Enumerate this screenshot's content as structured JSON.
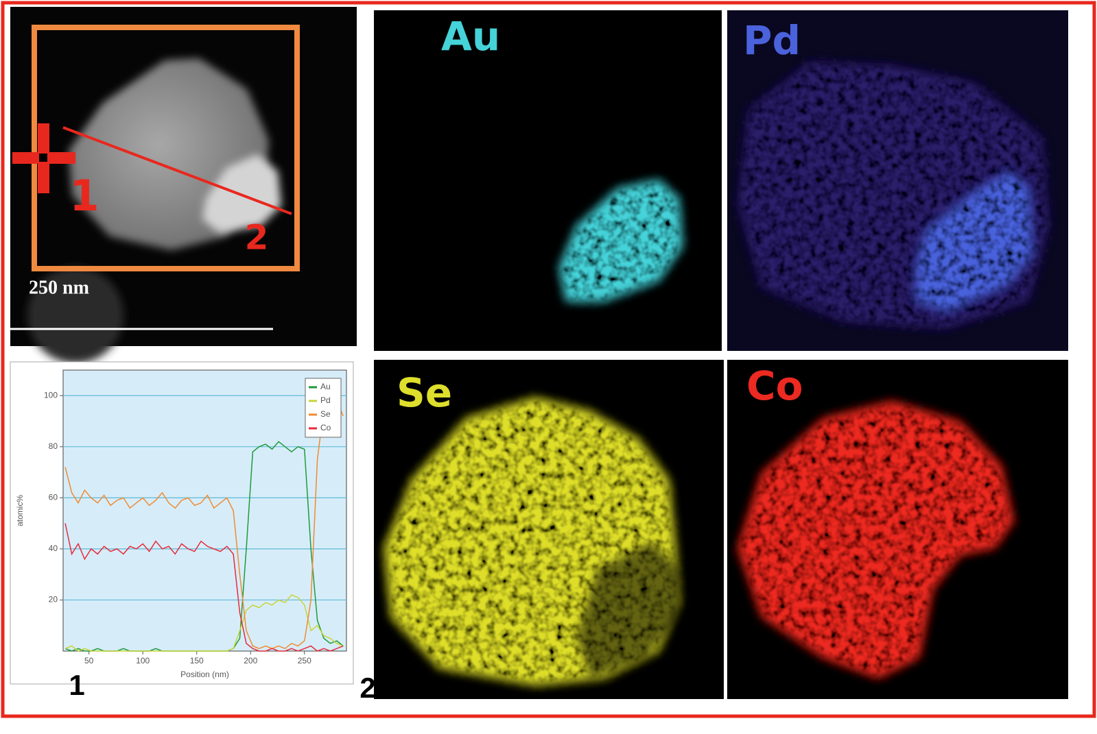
{
  "stem_image": {
    "scale_label": "250 nm",
    "point_labels": [
      "1",
      "2"
    ]
  },
  "profile_endpoints": [
    "1",
    "2"
  ],
  "maps": [
    {
      "element": "Au",
      "color": "#45d2d8"
    },
    {
      "element": "Pd",
      "color": "#4a62dc"
    },
    {
      "element": "Se",
      "color": "#dede2c"
    },
    {
      "element": "Co",
      "color": "#ec2a22"
    }
  ],
  "chart_data": {
    "type": "line",
    "xlabel": "Position (nm)",
    "ylabel": "atomic%",
    "x": [
      28,
      34,
      40,
      46,
      52,
      58,
      64,
      70,
      76,
      82,
      88,
      94,
      100,
      106,
      112,
      118,
      124,
      130,
      136,
      142,
      148,
      154,
      160,
      166,
      172,
      178,
      184,
      190,
      196,
      202,
      208,
      214,
      220,
      226,
      232,
      238,
      244,
      250,
      256,
      262,
      268,
      274,
      280,
      286
    ],
    "series": [
      {
        "name": "Au",
        "color": "#1f9a3a",
        "values": [
          1,
          0,
          1,
          0,
          0,
          1,
          0,
          0,
          0,
          1,
          0,
          0,
          0,
          0,
          1,
          0,
          0,
          0,
          0,
          0,
          0,
          0,
          0,
          0,
          0,
          0,
          1,
          5,
          40,
          78,
          80,
          81,
          79,
          82,
          80,
          78,
          80,
          79,
          40,
          12,
          5,
          3,
          4,
          2
        ]
      },
      {
        "name": "Pd",
        "color": "#c8d43a",
        "values": [
          1,
          2,
          0,
          1,
          0,
          0,
          0,
          0,
          0,
          0,
          0,
          0,
          0,
          0,
          0,
          0,
          0,
          0,
          0,
          0,
          0,
          0,
          0,
          0,
          0,
          0,
          1,
          8,
          16,
          18,
          17,
          19,
          18,
          20,
          19,
          22,
          21,
          18,
          8,
          10,
          6,
          5,
          3,
          2
        ]
      },
      {
        "name": "Se",
        "color": "#f28a30",
        "values": [
          72,
          62,
          58,
          63,
          60,
          58,
          61,
          57,
          59,
          60,
          56,
          58,
          60,
          57,
          59,
          62,
          58,
          56,
          59,
          60,
          57,
          58,
          61,
          56,
          58,
          60,
          55,
          30,
          8,
          2,
          1,
          2,
          1,
          2,
          1,
          3,
          2,
          4,
          20,
          75,
          95,
          100,
          98,
          92
        ]
      },
      {
        "name": "Co",
        "color": "#e82a3a",
        "values": [
          50,
          38,
          42,
          36,
          40,
          38,
          41,
          39,
          40,
          38,
          41,
          40,
          42,
          39,
          43,
          40,
          41,
          38,
          42,
          40,
          39,
          43,
          41,
          40,
          39,
          41,
          38,
          15,
          3,
          1,
          0,
          0,
          1,
          0,
          0,
          1,
          0,
          1,
          2,
          0,
          1,
          0,
          1,
          2
        ]
      }
    ],
    "xlim": [
      26,
      289
    ],
    "ylim": [
      0,
      110
    ],
    "xticks": [
      50,
      100,
      150,
      200,
      250
    ],
    "yticks": [
      20,
      40,
      60,
      80,
      100
    ],
    "grid": true,
    "legend": "upper right"
  }
}
